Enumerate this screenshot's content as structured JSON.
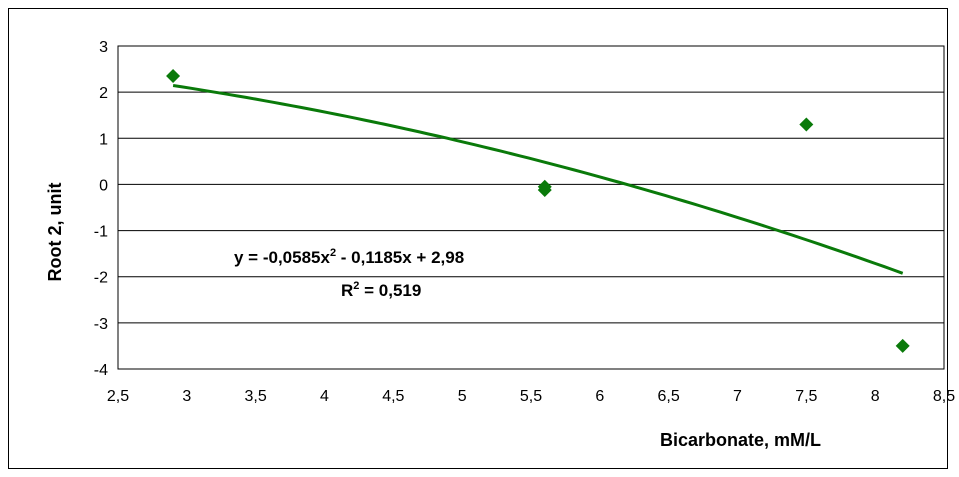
{
  "chart_data": {
    "type": "scatter",
    "xlabel": "Bicarbonate, mM/L",
    "ylabel": "Root 2, unit",
    "xlim": [
      2.5,
      8.5
    ],
    "ylim": [
      -4,
      3
    ],
    "x_ticks": [
      "2,5",
      "3",
      "3,5",
      "4",
      "4,5",
      "5",
      "5,5",
      "6",
      "6,5",
      "7",
      "7,5",
      "8",
      "8,5"
    ],
    "y_ticks": [
      "3",
      "2",
      "1",
      "0",
      "-1",
      "-2",
      "-3",
      "-4"
    ],
    "grid": "horizontal",
    "marker_color": "#0a7a0a",
    "trend_color": "#0a7a0a",
    "series": [
      {
        "points": [
          {
            "x": 2.9,
            "y": 2.35
          },
          {
            "x": 5.6,
            "y": -0.05
          },
          {
            "x": 5.6,
            "y": -0.12
          },
          {
            "x": 7.5,
            "y": 1.3
          },
          {
            "x": 8.2,
            "y": -3.5
          }
        ]
      }
    ],
    "trendline": {
      "type": "polynomial",
      "coefficients": [
        -0.0585,
        -0.1185,
        2.98
      ],
      "x_range": [
        2.9,
        8.2
      ],
      "equation_prefix": "y = -0,0585x",
      "equation_sup": "2",
      "equation_suffix": " - 0,1185x + 2,98",
      "r2_prefix": "R",
      "r2_sup": "2",
      "r2_suffix": " = 0,519"
    }
  }
}
